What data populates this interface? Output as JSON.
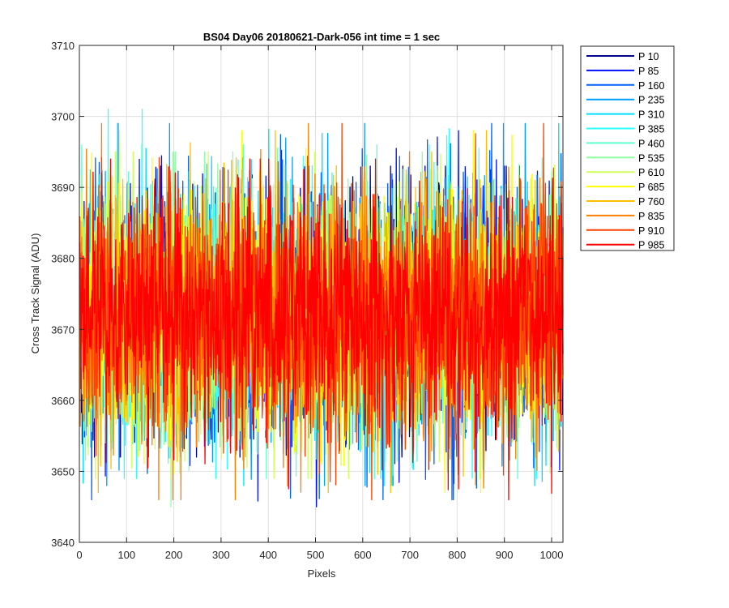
{
  "chart_data": {
    "type": "line",
    "title": "BS04 Day06 20180621-Dark-056 int time = 1 sec",
    "xlabel": "Pixels",
    "ylabel": "Cross Track Signal (ADU)",
    "xlim": [
      0,
      1024
    ],
    "ylim": [
      3640,
      3710
    ],
    "x_ticks": [
      0,
      100,
      200,
      300,
      400,
      500,
      600,
      700,
      800,
      900,
      1000
    ],
    "y_ticks": [
      3640,
      3650,
      3660,
      3670,
      3680,
      3690,
      3700,
      3710
    ],
    "grid": true,
    "legend_position": "outside-top-right",
    "x_count": 1024,
    "series_mean": 3672,
    "series": [
      {
        "name": "P 10",
        "color": "#00008F",
        "min": 3652,
        "max": 3693
      },
      {
        "name": "P 85",
        "color": "#0010FF",
        "min": 3645,
        "max": 3698
      },
      {
        "name": "P 160",
        "color": "#005FFF",
        "min": 3646,
        "max": 3699
      },
      {
        "name": "P 235",
        "color": "#00A0FF",
        "min": 3648,
        "max": 3699
      },
      {
        "name": "P 310",
        "color": "#00DFFF",
        "min": 3648,
        "max": 3699
      },
      {
        "name": "P 385",
        "color": "#2FFFFF",
        "min": 3649,
        "max": 3701
      },
      {
        "name": "P 460",
        "color": "#60FFCF",
        "min": 3649,
        "max": 3696
      },
      {
        "name": "P 535",
        "color": "#8FFF9F",
        "min": 3645,
        "max": 3695
      },
      {
        "name": "P 610",
        "color": "#CFFF5F",
        "min": 3649,
        "max": 3695
      },
      {
        "name": "P 685",
        "color": "#FFFF00",
        "min": 3647,
        "max": 3698
      },
      {
        "name": "P 760",
        "color": "#FFBF00",
        "min": 3647,
        "max": 3698
      },
      {
        "name": "P 835",
        "color": "#FF7F00",
        "min": 3646,
        "max": 3699
      },
      {
        "name": "P 910",
        "color": "#FF4000",
        "min": 3646,
        "max": 3699
      },
      {
        "name": "P 985",
        "color": "#FF0000",
        "min": 3646,
        "max": 3694
      }
    ]
  }
}
